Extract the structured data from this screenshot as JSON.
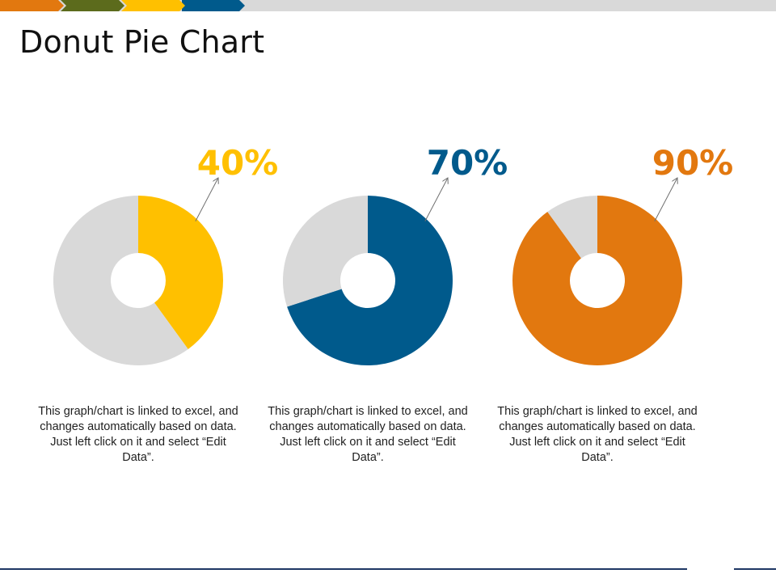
{
  "title": "Donut Pie Chart",
  "colors": {
    "yellow": "#FFC000",
    "blue": "#005A8C",
    "orange": "#E2780F",
    "grey": "#D9D9D9",
    "olive": "#5C6B1C",
    "dark_rule": "#1F3864"
  },
  "chart_data": [
    {
      "type": "pie",
      "donut": true,
      "label": "40%",
      "slices": [
        {
          "value": 40,
          "color": "#FFC000"
        },
        {
          "value": 60,
          "color": "#D9D9D9"
        }
      ],
      "description": "This graph/chart is linked to excel, and changes automatically based on data. Just left click on it and select “Edit Data”."
    },
    {
      "type": "pie",
      "donut": true,
      "label": "70%",
      "slices": [
        {
          "value": 70,
          "color": "#005A8C"
        },
        {
          "value": 30,
          "color": "#D9D9D9"
        }
      ],
      "description": "This graph/chart is linked to excel, and changes automatically based on data. Just left click on it and select “Edit Data”."
    },
    {
      "type": "pie",
      "donut": true,
      "label": "90%",
      "slices": [
        {
          "value": 90,
          "color": "#E2780F"
        },
        {
          "value": 10,
          "color": "#D9D9D9"
        }
      ],
      "description": "This graph/chart is linked to excel, and changes automatically based on data. Just left click on it and select “Edit Data”."
    }
  ]
}
